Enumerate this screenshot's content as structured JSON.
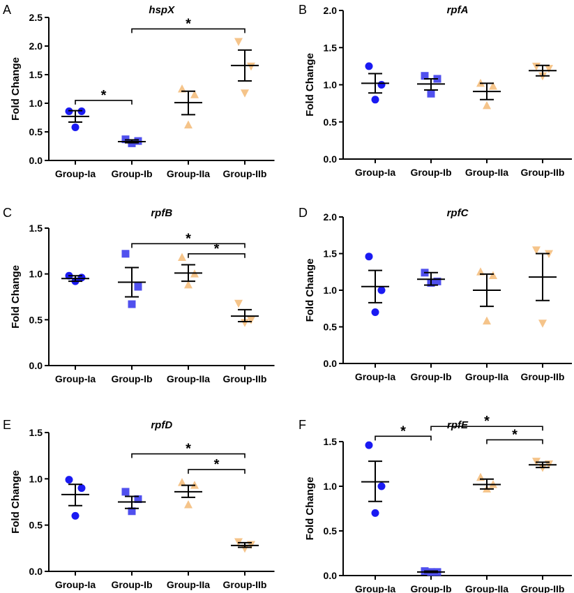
{
  "colors": {
    "ia": "#1a1af2",
    "ib": "#5050ee",
    "iia": "#f5c48a",
    "iib": "#f5c48a",
    "ink": "#000000"
  },
  "chart_data": [
    {
      "panel": "A",
      "title": "hspX",
      "type": "scatter",
      "ylabel": "Fold Change",
      "ylim": [
        0,
        2.5
      ],
      "yticks": [
        "0.0",
        "0.5",
        "1.0",
        "1.5",
        "2.0",
        "2.5"
      ],
      "categories": [
        "Group-Ia",
        "Group-Ib",
        "Group-IIa",
        "Group-IIb"
      ],
      "series": [
        {
          "group": "Group-Ia",
          "marker": "circle",
          "values": [
            0.86,
            0.86,
            0.58
          ],
          "mean": 0.77,
          "sem": [
            0.67,
            0.87
          ]
        },
        {
          "group": "Group-Ib",
          "marker": "square",
          "values": [
            0.37,
            0.34,
            0.3
          ],
          "mean": 0.33,
          "sem": [
            0.31,
            0.36
          ]
        },
        {
          "group": "Group-IIa",
          "marker": "triangle",
          "values": [
            1.25,
            1.15,
            0.62
          ],
          "mean": 1.01,
          "sem": [
            0.8,
            1.21
          ]
        },
        {
          "group": "Group-IIb",
          "marker": "invtriangle",
          "values": [
            2.08,
            1.65,
            1.18
          ],
          "mean": 1.66,
          "sem": [
            1.39,
            1.93
          ]
        }
      ],
      "significance": [
        {
          "from": "Group-Ia",
          "to": "Group-Ib",
          "label": "*",
          "level": 1.05
        },
        {
          "from": "Group-Ib",
          "to": "Group-IIb",
          "label": "*",
          "level": 2.3
        }
      ]
    },
    {
      "panel": "B",
      "title": "rpfA",
      "type": "scatter",
      "ylabel": "Fold Change",
      "ylim": [
        0,
        2.0
      ],
      "yticks": [
        "0.0",
        "0.5",
        "1.0",
        "1.5",
        "2.0"
      ],
      "categories": [
        "Group-Ia",
        "Group-Ib",
        "Group-IIa",
        "Group-IIb"
      ],
      "series": [
        {
          "group": "Group-Ia",
          "marker": "circle",
          "values": [
            1.25,
            1.0,
            0.8
          ],
          "mean": 1.02,
          "sem": [
            0.89,
            1.15
          ]
        },
        {
          "group": "Group-Ib",
          "marker": "square",
          "values": [
            1.12,
            1.08,
            0.88
          ],
          "mean": 1.01,
          "sem": [
            0.93,
            1.08
          ]
        },
        {
          "group": "Group-IIa",
          "marker": "triangle",
          "values": [
            1.02,
            0.98,
            0.72
          ],
          "mean": 0.91,
          "sem": [
            0.8,
            1.02
          ]
        },
        {
          "group": "Group-IIb",
          "marker": "invtriangle",
          "values": [
            1.25,
            1.22,
            1.12
          ],
          "mean": 1.19,
          "sem": [
            1.12,
            1.26
          ]
        }
      ],
      "significance": []
    },
    {
      "panel": "C",
      "title": "rpfB",
      "type": "scatter",
      "ylabel": "Fold Change",
      "ylim": [
        0,
        1.5
      ],
      "yticks": [
        "0.0",
        "0.5",
        "1.0",
        "1.5"
      ],
      "categories": [
        "Group-Ia",
        "Group-Ib",
        "Group-IIa",
        "Group-IIb"
      ],
      "series": [
        {
          "group": "Group-Ia",
          "marker": "circle",
          "values": [
            0.98,
            0.96,
            0.92
          ],
          "mean": 0.95,
          "sem": [
            0.92,
            0.98
          ]
        },
        {
          "group": "Group-Ib",
          "marker": "square",
          "values": [
            1.22,
            0.86,
            0.67
          ],
          "mean": 0.91,
          "sem": [
            0.75,
            1.07
          ]
        },
        {
          "group": "Group-IIa",
          "marker": "triangle",
          "values": [
            1.18,
            1.0,
            0.88
          ],
          "mean": 1.01,
          "sem": [
            0.92,
            1.1
          ]
        },
        {
          "group": "Group-IIb",
          "marker": "invtriangle",
          "values": [
            0.68,
            0.5,
            0.47
          ],
          "mean": 0.54,
          "sem": [
            0.48,
            0.61
          ]
        }
      ],
      "significance": [
        {
          "from": "Group-Ib",
          "to": "Group-IIb",
          "label": "*",
          "level": 1.33
        },
        {
          "from": "Group-IIa",
          "to": "Group-IIb",
          "label": "*",
          "level": 1.22
        }
      ]
    },
    {
      "panel": "D",
      "title": "rpfC",
      "type": "scatter",
      "ylabel": "Fold Change",
      "ylim": [
        0,
        2.0
      ],
      "yticks": [
        "0.0",
        "0.5",
        "1.0",
        "1.5",
        "2.0"
      ],
      "categories": [
        "Group-Ia",
        "Group-Ib",
        "Group-IIa",
        "Group-IIb"
      ],
      "series": [
        {
          "group": "Group-Ia",
          "marker": "circle",
          "values": [
            1.46,
            1.0,
            0.7
          ],
          "mean": 1.05,
          "sem": [
            0.83,
            1.27
          ]
        },
        {
          "group": "Group-Ib",
          "marker": "square",
          "values": [
            1.24,
            1.12,
            1.1
          ],
          "mean": 1.15,
          "sem": [
            1.07,
            1.24
          ]
        },
        {
          "group": "Group-IIa",
          "marker": "triangle",
          "values": [
            1.25,
            1.2,
            0.58
          ],
          "mean": 1.0,
          "sem": [
            0.78,
            1.22
          ]
        },
        {
          "group": "Group-IIb",
          "marker": "invtriangle",
          "values": [
            1.55,
            1.5,
            0.55
          ],
          "mean": 1.18,
          "sem": [
            0.86,
            1.5
          ]
        }
      ],
      "significance": []
    },
    {
      "panel": "E",
      "title": "rpfD",
      "type": "scatter",
      "ylabel": "Fold Change",
      "ylim": [
        0,
        1.5
      ],
      "yticks": [
        "0.0",
        "0.5",
        "1.0",
        "1.5"
      ],
      "categories": [
        "Group-Ia",
        "Group-Ib",
        "Group-IIa",
        "Group-IIb"
      ],
      "series": [
        {
          "group": "Group-Ia",
          "marker": "circle",
          "values": [
            0.99,
            0.9,
            0.6
          ],
          "mean": 0.83,
          "sem": [
            0.71,
            0.94
          ]
        },
        {
          "group": "Group-Ib",
          "marker": "square",
          "values": [
            0.86,
            0.78,
            0.65
          ],
          "mean": 0.75,
          "sem": [
            0.68,
            0.81
          ]
        },
        {
          "group": "Group-IIa",
          "marker": "triangle",
          "values": [
            0.96,
            0.93,
            0.72
          ],
          "mean": 0.86,
          "sem": [
            0.8,
            0.93
          ]
        },
        {
          "group": "Group-IIb",
          "marker": "invtriangle",
          "values": [
            0.32,
            0.29,
            0.25
          ],
          "mean": 0.28,
          "sem": [
            0.26,
            0.31
          ]
        }
      ],
      "significance": [
        {
          "from": "Group-Ib",
          "to": "Group-IIb",
          "label": "*",
          "level": 1.27
        },
        {
          "from": "Group-IIa",
          "to": "Group-IIb",
          "label": "*",
          "level": 1.1
        }
      ]
    },
    {
      "panel": "F",
      "title": "rpfE",
      "type": "scatter",
      "ylabel": "Fold Change",
      "ylim": [
        0,
        1.5
      ],
      "yticks": [
        "0.0",
        "0.5",
        "1.0",
        "1.5"
      ],
      "categories": [
        "Group-Ia",
        "Group-Ib",
        "Group-IIa",
        "Group-IIb"
      ],
      "series": [
        {
          "group": "Group-Ia",
          "marker": "circle",
          "values": [
            1.46,
            1.0,
            0.7
          ],
          "mean": 1.05,
          "sem": [
            0.83,
            1.28
          ]
        },
        {
          "group": "Group-Ib",
          "marker": "square",
          "values": [
            0.05,
            0.04,
            0.04
          ],
          "mean": 0.04,
          "sem": [
            0.035,
            0.05
          ]
        },
        {
          "group": "Group-IIa",
          "marker": "triangle",
          "values": [
            1.1,
            1.02,
            0.97
          ],
          "mean": 1.02,
          "sem": [
            0.97,
            1.08
          ]
        },
        {
          "group": "Group-IIb",
          "marker": "invtriangle",
          "values": [
            1.28,
            1.25,
            1.21
          ],
          "mean": 1.24,
          "sem": [
            1.21,
            1.27
          ]
        }
      ],
      "significance": [
        {
          "from": "Group-Ia",
          "to": "Group-Ib",
          "label": "*",
          "level": 1.56
        },
        {
          "from": "Group-Ib",
          "to": "Group-IIb",
          "label": "*",
          "level": 1.67
        },
        {
          "from": "Group-IIa",
          "to": "Group-IIb",
          "label": "*",
          "level": 1.52
        }
      ]
    }
  ]
}
